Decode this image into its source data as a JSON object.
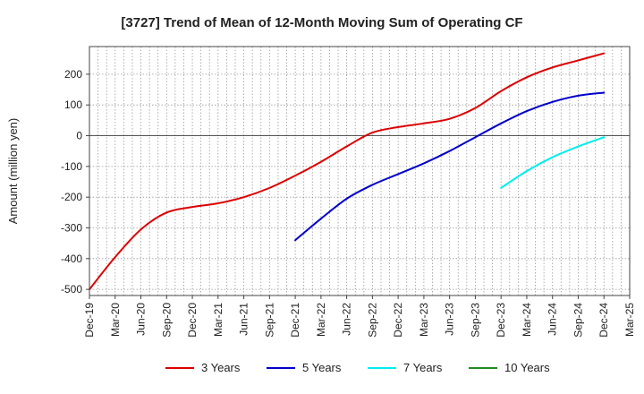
{
  "chart_data": {
    "type": "line",
    "title": "[3727]  Trend of Mean of 12-Month Moving Sum of Operating CF",
    "xlabel": "",
    "ylabel": "Amount (million yen)",
    "ylim": [
      -520,
      290
    ],
    "yticks": [
      -500,
      -400,
      -300,
      -200,
      -100,
      0,
      100,
      200
    ],
    "grid": true,
    "legend_position": "bottom-center",
    "categories": [
      "Dec-19",
      "Mar-20",
      "Jun-20",
      "Sep-20",
      "Dec-20",
      "Mar-21",
      "Jun-21",
      "Sep-21",
      "Dec-21",
      "Mar-22",
      "Jun-22",
      "Sep-22",
      "Dec-22",
      "Mar-23",
      "Jun-23",
      "Sep-23",
      "Dec-23",
      "Mar-24",
      "Jun-24",
      "Sep-24",
      "Dec-24",
      "Mar-25"
    ],
    "series": [
      {
        "name": "3 Years",
        "color": "#dd0000",
        "values": [
          -500,
          -395,
          -305,
          -250,
          -232,
          -220,
          -200,
          -170,
          -130,
          -85,
          -35,
          10,
          28,
          40,
          55,
          90,
          145,
          190,
          222,
          245,
          268,
          null
        ]
      },
      {
        "name": "5 Years",
        "color": "#0000cc",
        "values": [
          null,
          null,
          null,
          null,
          null,
          null,
          null,
          null,
          -340,
          -270,
          -205,
          -160,
          -125,
          -90,
          -50,
          -5,
          40,
          80,
          110,
          130,
          140,
          null
        ]
      },
      {
        "name": "7 Years",
        "color": "#00eeee",
        "values": [
          null,
          null,
          null,
          null,
          null,
          null,
          null,
          null,
          null,
          null,
          null,
          null,
          null,
          null,
          null,
          null,
          -170,
          -115,
          -70,
          -35,
          -5,
          null
        ]
      },
      {
        "name": "10 Years",
        "color": "#228b22",
        "values": [
          null,
          null,
          null,
          null,
          null,
          null,
          null,
          null,
          null,
          null,
          null,
          null,
          null,
          null,
          null,
          null,
          null,
          null,
          null,
          null,
          null,
          null
        ]
      }
    ]
  }
}
